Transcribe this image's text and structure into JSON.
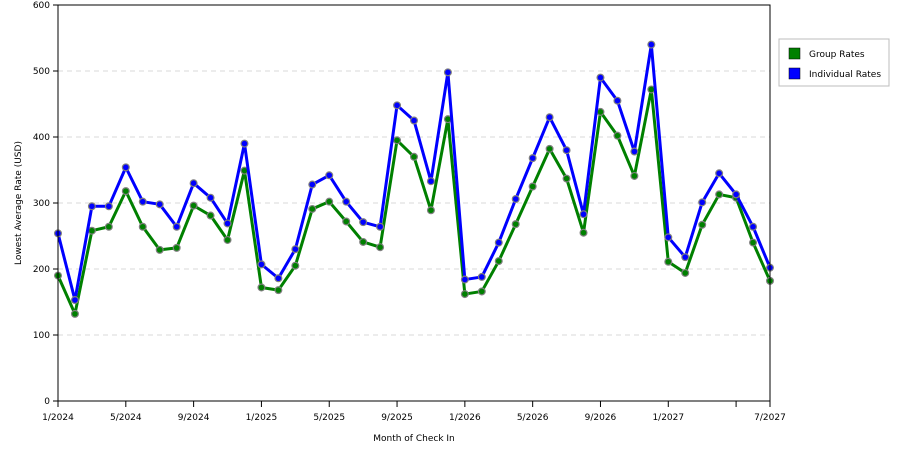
{
  "chart_data": {
    "type": "line",
    "title": "",
    "xlabel": "Month of Check In",
    "ylabel": "Lowest Average Rate (USD)",
    "ylim": [
      0,
      600
    ],
    "yticks": [
      0,
      100,
      200,
      300,
      400,
      500,
      600
    ],
    "x_range": [
      "2024-01",
      "2027-07"
    ],
    "x_ticks": [
      "2024-01",
      "2024-05",
      "2024-09",
      "2025-01",
      "2025-05",
      "2025-09",
      "2026-01",
      "2026-05",
      "2026-09",
      "2027-01",
      "2027-05",
      "2027-07"
    ],
    "x_tick_labels": [
      "1/2024",
      "5/2024",
      "9/2024",
      "1/2025",
      "5/2025",
      "9/2025",
      "1/2026",
      "5/2026",
      "9/2026",
      "1/2027",
      "",
      "7/2027"
    ],
    "grid": "horizontal dashed",
    "legend_position": "right",
    "x": [
      "2024-01",
      "2024-02",
      "2024-03",
      "2024-04",
      "2024-05",
      "2024-06",
      "2024-07",
      "2024-08",
      "2024-09",
      "2024-10",
      "2024-11",
      "2024-12",
      "2025-01",
      "2025-02",
      "2025-03",
      "2025-04",
      "2025-05",
      "2025-06",
      "2025-07",
      "2025-08",
      "2025-09",
      "2025-10",
      "2025-11",
      "2025-12",
      "2026-01",
      "2026-02",
      "2026-03",
      "2026-04",
      "2026-05",
      "2026-06",
      "2026-07",
      "2026-08",
      "2026-09",
      "2026-10",
      "2026-11",
      "2026-12",
      "2027-01",
      "2027-02",
      "2027-03",
      "2027-04",
      "2027-05",
      "2027-06",
      "2027-07"
    ],
    "series": [
      {
        "name": "Group Rates",
        "color": "#008000",
        "values": [
          190,
          132,
          258,
          264,
          318,
          264,
          229,
          232,
          296,
          281,
          244,
          349,
          172,
          168,
          205,
          291,
          302,
          272,
          241,
          233,
          395,
          370,
          289,
          427,
          162,
          166,
          212,
          268,
          325,
          382,
          337,
          255,
          438,
          402,
          341,
          472,
          211,
          194,
          267,
          313,
          308,
          240,
          182
        ]
      },
      {
        "name": "Individual Rates",
        "color": "#0000FF",
        "values": [
          254,
          153,
          295,
          295,
          354,
          302,
          298,
          264,
          330,
          308,
          269,
          390,
          207,
          186,
          230,
          328,
          342,
          302,
          271,
          264,
          448,
          425,
          333,
          498,
          184,
          188,
          240,
          306,
          368,
          430,
          380,
          283,
          490,
          455,
          378,
          540,
          248,
          218,
          301,
          345,
          313,
          264,
          202
        ]
      }
    ]
  }
}
